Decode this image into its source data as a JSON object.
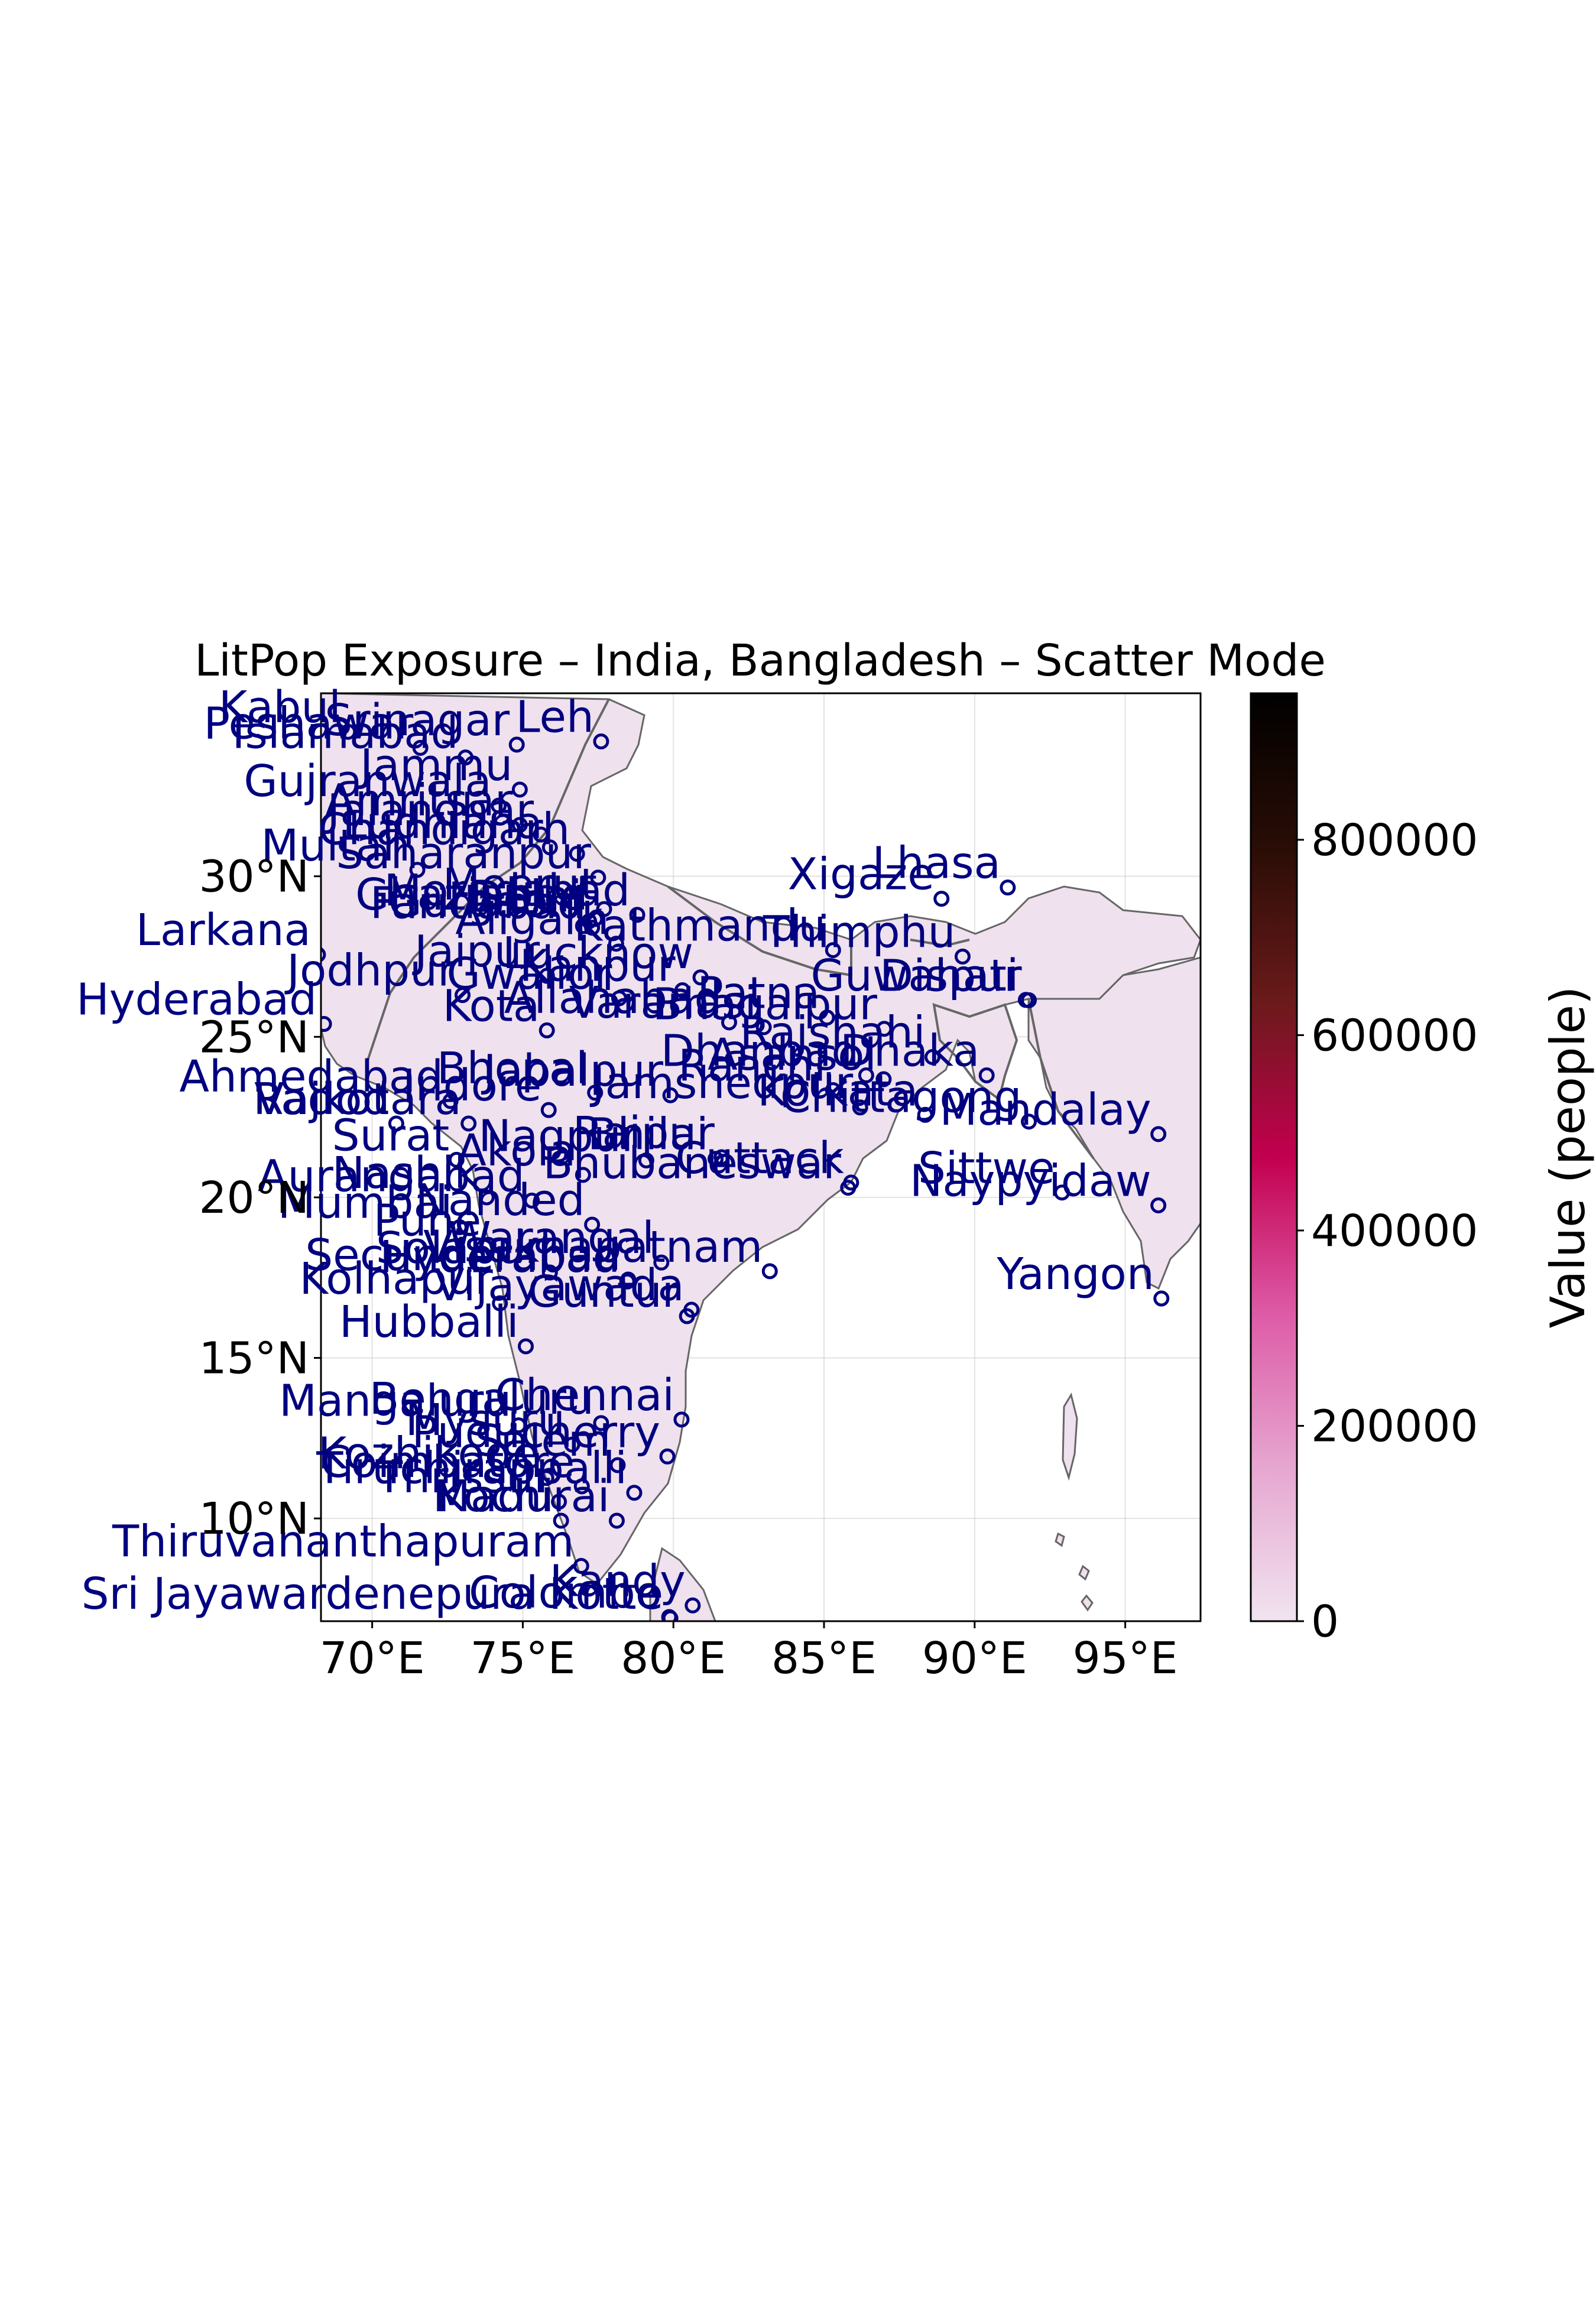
{
  "title": "LitPop Exposure – India, Bangladesh – Scatter Mode",
  "colorbar": {
    "label": "Value (people)",
    "ticks": [
      {
        "value": 0,
        "label": "0"
      },
      {
        "value": 200000,
        "label": "200000"
      },
      {
        "value": 400000,
        "label": "400000"
      },
      {
        "value": 600000,
        "label": "600000"
      },
      {
        "value": 800000,
        "label": "800000"
      }
    ],
    "min": 0,
    "max": 950000,
    "colors": [
      "#f1e4f0",
      "#e6a6d0",
      "#dd5aa6",
      "#c3004f",
      "#6b1a1a",
      "#2a0d06",
      "#000000"
    ]
  },
  "map": {
    "lon_range": [
      68.3,
      97.5
    ],
    "lat_range": [
      6.8,
      35.7
    ],
    "x_ticks": [
      {
        "value": 70,
        "label": "70°E"
      },
      {
        "value": 75,
        "label": "75°E"
      },
      {
        "value": 80,
        "label": "80°E"
      },
      {
        "value": 85,
        "label": "85°E"
      },
      {
        "value": 90,
        "label": "90°E"
      },
      {
        "value": 95,
        "label": "95°E"
      }
    ],
    "y_ticks": [
      {
        "value": 10,
        "label": "10°N"
      },
      {
        "value": 15,
        "label": "15°N"
      },
      {
        "value": 20,
        "label": "20°N"
      },
      {
        "value": 25,
        "label": "25°N"
      },
      {
        "value": 30,
        "label": "30°N"
      }
    ],
    "land_color": "#efe1ee",
    "label_color": "#000080"
  },
  "cities": [
    {
      "name": "Kabul",
      "lon": 69.2,
      "lat": 34.5
    },
    {
      "name": "Peshawar",
      "lon": 71.6,
      "lat": 34.0
    },
    {
      "name": "Srinagar",
      "lon": 74.8,
      "lat": 34.1
    },
    {
      "name": "Leh",
      "lon": 77.6,
      "lat": 34.2
    },
    {
      "name": "Islamabad",
      "lon": 73.1,
      "lat": 33.7
    },
    {
      "name": "Jammu",
      "lon": 74.9,
      "lat": 32.7
    },
    {
      "name": "Gujranwala",
      "lon": 74.2,
      "lat": 32.2
    },
    {
      "name": "Amritsar",
      "lon": 74.9,
      "lat": 31.6
    },
    {
      "name": "Jalandhar",
      "lon": 75.6,
      "lat": 31.3
    },
    {
      "name": "Ludhiana",
      "lon": 75.9,
      "lat": 30.9
    },
    {
      "name": "Chandigarh",
      "lon": 76.8,
      "lat": 30.7
    },
    {
      "name": "Multan",
      "lon": 71.5,
      "lat": 30.2
    },
    {
      "name": "Saharanpur",
      "lon": 77.5,
      "lat": 29.96
    },
    {
      "name": "Meerut",
      "lon": 77.7,
      "lat": 28.98
    },
    {
      "name": "Ghaziabad",
      "lon": 77.4,
      "lat": 28.67
    },
    {
      "name": "Delhi",
      "lon": 77.2,
      "lat": 28.6
    },
    {
      "name": "Moradabad",
      "lon": 78.8,
      "lat": 28.8
    },
    {
      "name": "Gurgaon",
      "lon": 77.0,
      "lat": 28.45
    },
    {
      "name": "Faridabad",
      "lon": 77.3,
      "lat": 28.4
    },
    {
      "name": "Aligarh",
      "lon": 78.1,
      "lat": 27.9
    },
    {
      "name": "Larkana",
      "lon": 68.2,
      "lat": 27.56
    },
    {
      "name": "Kathmandu",
      "lon": 85.3,
      "lat": 27.7
    },
    {
      "name": "Xigaze",
      "lon": 88.9,
      "lat": 29.3
    },
    {
      "name": "Lhasa",
      "lon": 91.1,
      "lat": 29.65
    },
    {
      "name": "Thimphu",
      "lon": 89.6,
      "lat": 27.5
    },
    {
      "name": "Jaipur",
      "lon": 75.8,
      "lat": 26.9
    },
    {
      "name": "Lucknow",
      "lon": 80.9,
      "lat": 26.85
    },
    {
      "name": "Guwahati",
      "lon": 91.7,
      "lat": 26.15
    },
    {
      "name": "Dispur",
      "lon": 91.8,
      "lat": 26.14
    },
    {
      "name": "Jodhpur",
      "lon": 73.0,
      "lat": 26.3
    },
    {
      "name": "Gwalior",
      "lon": 78.2,
      "lat": 26.2
    },
    {
      "name": "Kanpur",
      "lon": 80.3,
      "lat": 26.45
    },
    {
      "name": "Hyderabad",
      "lon": 68.4,
      "lat": 25.4
    },
    {
      "name": "Kota",
      "lon": 75.8,
      "lat": 25.2
    },
    {
      "name": "Allahabad",
      "lon": 81.85,
      "lat": 25.45
    },
    {
      "name": "Varanasi",
      "lon": 83.0,
      "lat": 25.3
    },
    {
      "name": "Patna",
      "lon": 85.1,
      "lat": 25.6
    },
    {
      "name": "Bhagalpur",
      "lon": 87.0,
      "lat": 25.25
    },
    {
      "name": "Rajshahi",
      "lon": 88.6,
      "lat": 24.37
    },
    {
      "name": "Dhanbad",
      "lon": 86.4,
      "lat": 23.8
    },
    {
      "name": "Asansol",
      "lon": 86.98,
      "lat": 23.68
    },
    {
      "name": "Dhaka",
      "lon": 90.4,
      "lat": 23.8
    },
    {
      "name": "Ahmedabad",
      "lon": 72.6,
      "lat": 23.0
    },
    {
      "name": "Bhopal",
      "lon": 77.4,
      "lat": 23.26
    },
    {
      "name": "Jabalpur",
      "lon": 79.9,
      "lat": 23.18
    },
    {
      "name": "Ranchi",
      "lon": 85.3,
      "lat": 23.34
    },
    {
      "name": "Indore",
      "lon": 75.86,
      "lat": 22.72
    },
    {
      "name": "Jamshedpur",
      "lon": 86.2,
      "lat": 22.8
    },
    {
      "name": "Kolkata",
      "lon": 88.36,
      "lat": 22.57
    },
    {
      "name": "Chittagong",
      "lon": 91.8,
      "lat": 22.36
    },
    {
      "name": "Mandalay",
      "lon": 96.1,
      "lat": 21.97
    },
    {
      "name": "Vadodara",
      "lon": 73.2,
      "lat": 22.3
    },
    {
      "name": "Rajkot",
      "lon": 70.8,
      "lat": 22.3
    },
    {
      "name": "Surat",
      "lon": 72.8,
      "lat": 21.17
    },
    {
      "name": "Nagpur",
      "lon": 79.1,
      "lat": 21.15
    },
    {
      "name": "Raipur",
      "lon": 81.6,
      "lat": 21.25
    },
    {
      "name": "Bhilai",
      "lon": 81.4,
      "lat": 21.2
    },
    {
      "name": "Akola",
      "lon": 77.0,
      "lat": 20.7
    },
    {
      "name": "Cuttack",
      "lon": 85.9,
      "lat": 20.46
    },
    {
      "name": "Bhubaneswar",
      "lon": 85.8,
      "lat": 20.3
    },
    {
      "name": "Sittwe",
      "lon": 92.9,
      "lat": 20.15
    },
    {
      "name": "Naypyidaw",
      "lon": 96.1,
      "lat": 19.75
    },
    {
      "name": "Aurangabad",
      "lon": 75.3,
      "lat": 19.9
    },
    {
      "name": "Nashik",
      "lon": 73.8,
      "lat": 20.0
    },
    {
      "name": "Nanded",
      "lon": 77.3,
      "lat": 19.15
    },
    {
      "name": "Mumbai",
      "lon": 72.9,
      "lat": 19.07
    },
    {
      "name": "Pune",
      "lon": 73.86,
      "lat": 18.52
    },
    {
      "name": "Visakhapatnam",
      "lon": 83.2,
      "lat": 17.7
    },
    {
      "name": "Solapur",
      "lon": 75.9,
      "lat": 17.66
    },
    {
      "name": "Secunderabad",
      "lon": 78.5,
      "lat": 17.44
    },
    {
      "name": "Hyderabad",
      "lon": 78.47,
      "lat": 17.38
    },
    {
      "name": "Kolhapur",
      "lon": 74.24,
      "lat": 16.7
    },
    {
      "name": "Warangal",
      "lon": 79.6,
      "lat": 17.97
    },
    {
      "name": "Vijayawada",
      "lon": 80.6,
      "lat": 16.5
    },
    {
      "name": "Guntur",
      "lon": 80.45,
      "lat": 16.3
    },
    {
      "name": "Yangon",
      "lon": 96.2,
      "lat": 16.85
    },
    {
      "name": "Hubballi",
      "lon": 75.1,
      "lat": 15.36
    },
    {
      "name": "Chennai",
      "lon": 80.27,
      "lat": 13.08
    },
    {
      "name": "Bengaluru",
      "lon": 77.6,
      "lat": 12.97
    },
    {
      "name": "Mangaluru",
      "lon": 74.86,
      "lat": 12.9
    },
    {
      "name": "Mysuru",
      "lon": 76.64,
      "lat": 12.3
    },
    {
      "name": "Puducherry",
      "lon": 79.8,
      "lat": 11.93
    },
    {
      "name": "Salem",
      "lon": 78.15,
      "lat": 11.66
    },
    {
      "name": "Kozhikode",
      "lon": 75.78,
      "lat": 11.26
    },
    {
      "name": "Coimbatore",
      "lon": 76.96,
      "lat": 11.0
    },
    {
      "name": "Tiruchirappalli",
      "lon": 78.7,
      "lat": 10.8
    },
    {
      "name": "Thrissur",
      "lon": 76.2,
      "lat": 10.52
    },
    {
      "name": "Kochi",
      "lon": 76.27,
      "lat": 9.93
    },
    {
      "name": "Madurai",
      "lon": 78.12,
      "lat": 9.93
    },
    {
      "name": "Thiruvananthapuram",
      "lon": 76.94,
      "lat": 8.52
    },
    {
      "name": "Kandy",
      "lon": 80.64,
      "lat": 7.29
    },
    {
      "name": "Colombo",
      "lon": 79.86,
      "lat": 6.93
    },
    {
      "name": "Sri Jayawardenepura Kotte",
      "lon": 79.9,
      "lat": 6.89
    }
  ]
}
